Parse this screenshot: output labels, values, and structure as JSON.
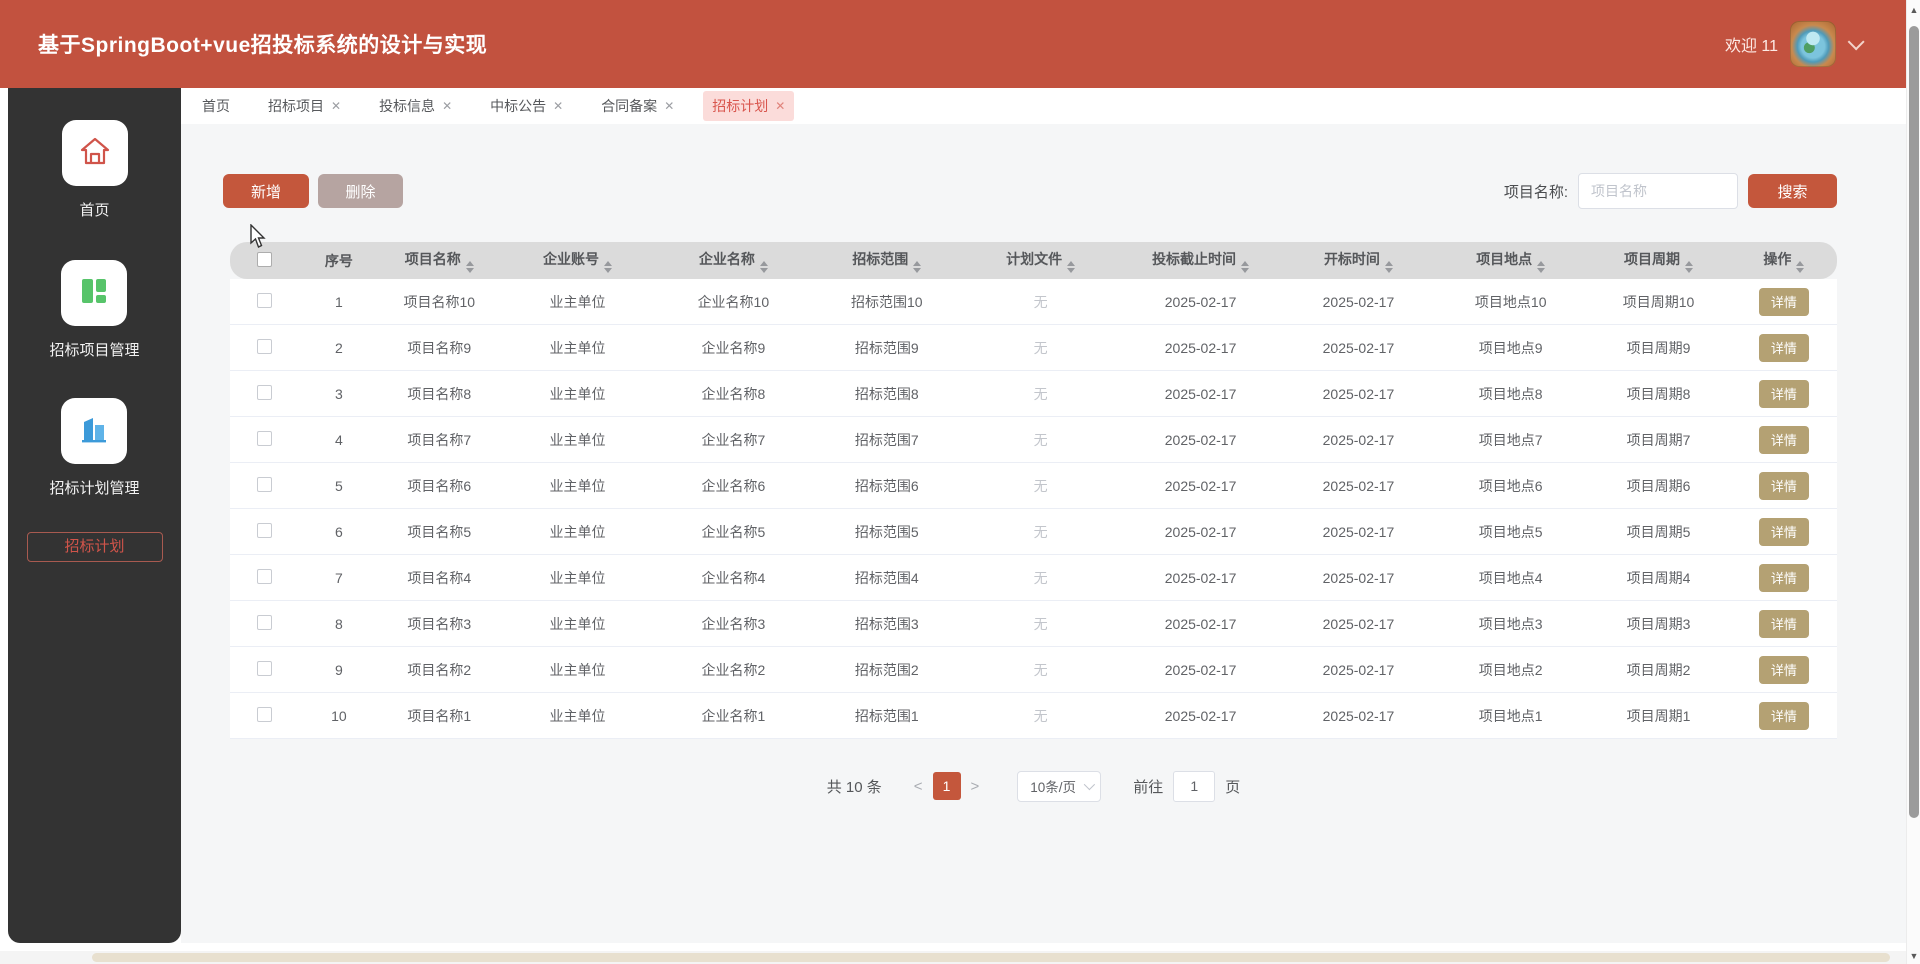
{
  "app": {
    "title": "基于SpringBoot+vue招投标系统的设计与实现",
    "welcome": "欢迎 11"
  },
  "tabs": [
    {
      "label": "首页",
      "closable": false,
      "active": false
    },
    {
      "label": "招标项目",
      "closable": true,
      "active": false
    },
    {
      "label": "投标信息",
      "closable": true,
      "active": false
    },
    {
      "label": "中标公告",
      "closable": true,
      "active": false
    },
    {
      "label": "合同备案",
      "closable": true,
      "active": false
    },
    {
      "label": "招标计划",
      "closable": true,
      "active": true
    }
  ],
  "sidebar": {
    "items": [
      {
        "label": "首页",
        "icon": "home-icon"
      },
      {
        "label": "招标项目管理",
        "icon": "grid-icon"
      },
      {
        "label": "招标计划管理",
        "icon": "building-chart-icon"
      }
    ],
    "active_submenu": "招标计划"
  },
  "toolbar": {
    "add_label": "新增",
    "delete_label": "删除",
    "filter_label": "项目名称:",
    "filter_placeholder": "项目名称",
    "search_label": "搜索"
  },
  "table": {
    "columns": [
      {
        "key": "index",
        "label": "序号",
        "sortable": false
      },
      {
        "key": "project_name",
        "label": "项目名称",
        "sortable": true
      },
      {
        "key": "account",
        "label": "企业账号",
        "sortable": true
      },
      {
        "key": "company",
        "label": "企业名称",
        "sortable": true
      },
      {
        "key": "scope",
        "label": "招标范围",
        "sortable": true
      },
      {
        "key": "plan_file",
        "label": "计划文件",
        "sortable": true
      },
      {
        "key": "deadline",
        "label": "投标截止时间",
        "sortable": true
      },
      {
        "key": "open_time",
        "label": "开标时间",
        "sortable": true
      },
      {
        "key": "location",
        "label": "项目地点",
        "sortable": true
      },
      {
        "key": "period",
        "label": "项目周期",
        "sortable": true
      },
      {
        "key": "action",
        "label": "操作",
        "sortable": true
      }
    ],
    "action_label": "详情",
    "rows": [
      {
        "index": "1",
        "project_name": "项目名称10",
        "account": "业主单位",
        "company": "企业名称10",
        "scope": "招标范围10",
        "plan_file": "无",
        "deadline": "2025-02-17",
        "open_time": "2025-02-17",
        "location": "项目地点10",
        "period": "项目周期10"
      },
      {
        "index": "2",
        "project_name": "项目名称9",
        "account": "业主单位",
        "company": "企业名称9",
        "scope": "招标范围9",
        "plan_file": "无",
        "deadline": "2025-02-17",
        "open_time": "2025-02-17",
        "location": "项目地点9",
        "period": "项目周期9"
      },
      {
        "index": "3",
        "project_name": "项目名称8",
        "account": "业主单位",
        "company": "企业名称8",
        "scope": "招标范围8",
        "plan_file": "无",
        "deadline": "2025-02-17",
        "open_time": "2025-02-17",
        "location": "项目地点8",
        "period": "项目周期8"
      },
      {
        "index": "4",
        "project_name": "项目名称7",
        "account": "业主单位",
        "company": "企业名称7",
        "scope": "招标范围7",
        "plan_file": "无",
        "deadline": "2025-02-17",
        "open_time": "2025-02-17",
        "location": "项目地点7",
        "period": "项目周期7"
      },
      {
        "index": "5",
        "project_name": "项目名称6",
        "account": "业主单位",
        "company": "企业名称6",
        "scope": "招标范围6",
        "plan_file": "无",
        "deadline": "2025-02-17",
        "open_time": "2025-02-17",
        "location": "项目地点6",
        "period": "项目周期6"
      },
      {
        "index": "6",
        "project_name": "项目名称5",
        "account": "业主单位",
        "company": "企业名称5",
        "scope": "招标范围5",
        "plan_file": "无",
        "deadline": "2025-02-17",
        "open_time": "2025-02-17",
        "location": "项目地点5",
        "period": "项目周期5"
      },
      {
        "index": "7",
        "project_name": "项目名称4",
        "account": "业主单位",
        "company": "企业名称4",
        "scope": "招标范围4",
        "plan_file": "无",
        "deadline": "2025-02-17",
        "open_time": "2025-02-17",
        "location": "项目地点4",
        "period": "项目周期4"
      },
      {
        "index": "8",
        "project_name": "项目名称3",
        "account": "业主单位",
        "company": "企业名称3",
        "scope": "招标范围3",
        "plan_file": "无",
        "deadline": "2025-02-17",
        "open_time": "2025-02-17",
        "location": "项目地点3",
        "period": "项目周期3"
      },
      {
        "index": "9",
        "project_name": "项目名称2",
        "account": "业主单位",
        "company": "企业名称2",
        "scope": "招标范围2",
        "plan_file": "无",
        "deadline": "2025-02-17",
        "open_time": "2025-02-17",
        "location": "项目地点2",
        "period": "项目周期2"
      },
      {
        "index": "10",
        "project_name": "项目名称1",
        "account": "业主单位",
        "company": "企业名称1",
        "scope": "招标范围1",
        "plan_file": "无",
        "deadline": "2025-02-17",
        "open_time": "2025-02-17",
        "location": "项目地点1",
        "period": "项目周期1"
      }
    ]
  },
  "pagination": {
    "total_text": "共 10 条",
    "prev_label": "<",
    "current_page": "1",
    "next_label": ">",
    "page_size": "10条/页",
    "goto_label": "前往",
    "goto_value": "1",
    "goto_suffix": "页"
  },
  "colors": {
    "appbar": "#c2523f",
    "accent_button": "#c4573c",
    "sidebar_bg": "#333333",
    "tab_active_bg": "#fbdcda",
    "tab_active_text": "#d9564e",
    "delete_button": "#b6a4a1",
    "detail_button": "#b4a173",
    "table_header_bg": "#dbdbdb",
    "muted_text": "#c3c6cc"
  }
}
